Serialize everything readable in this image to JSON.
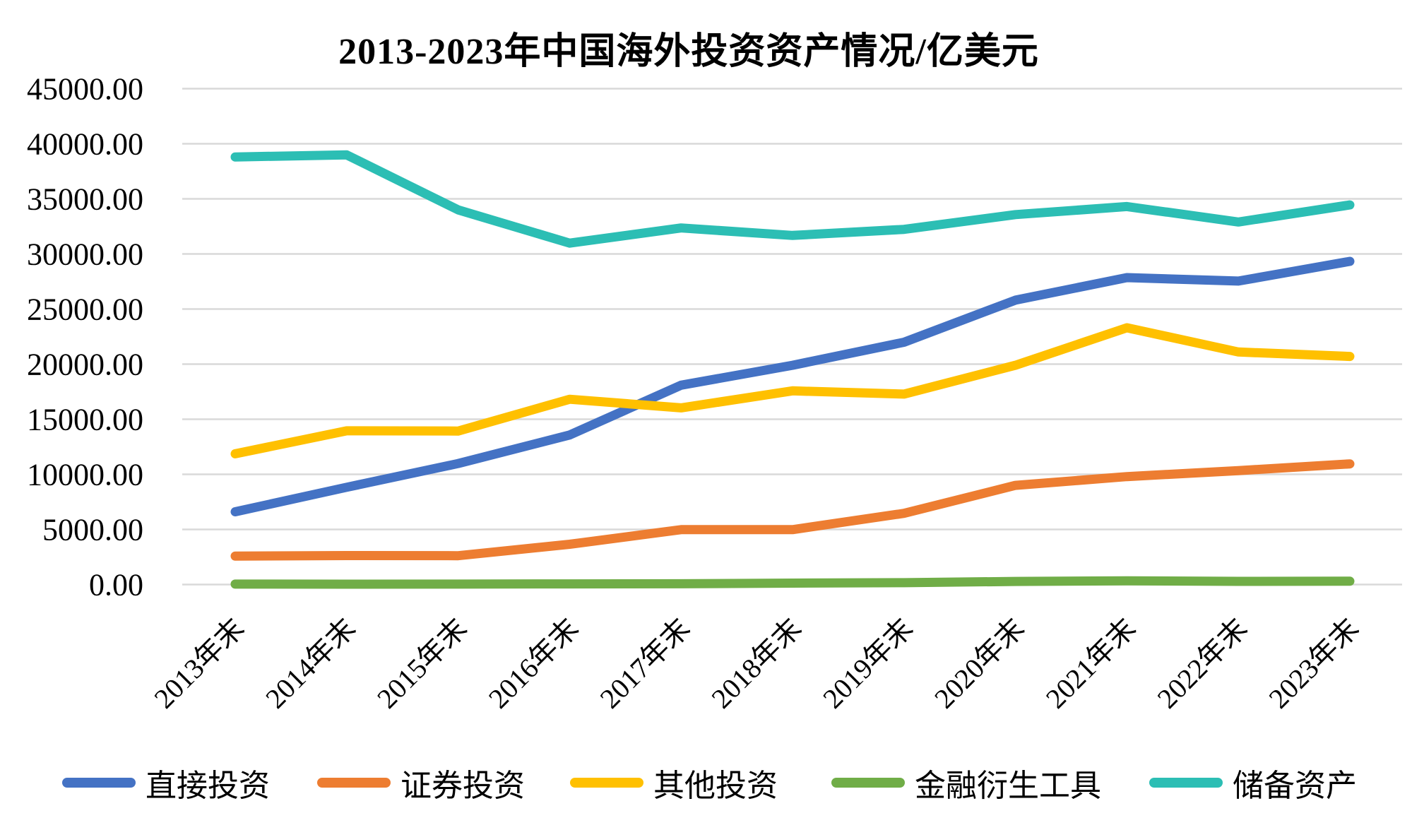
{
  "chart_data": {
    "type": "line",
    "title": "2013-2023年中国海外投资资产情况/亿美元",
    "unit": "亿美元",
    "categories": [
      "2013年末",
      "2014年末",
      "2015年末",
      "2016年末",
      "2017年末",
      "2018年末",
      "2019年末",
      "2020年末",
      "2021年末",
      "2022年末",
      "2023年末"
    ],
    "series": [
      {
        "name": "直接投资",
        "color": "#4472C4",
        "values": [
          6605,
          8826,
          10978,
          13572,
          18090,
          19899,
          21989,
          25807,
          27852,
          27537,
          29325
        ]
      },
      {
        "name": "证券投资",
        "color": "#ED7D31",
        "values": [
          2585,
          2625,
          2613,
          3651,
          4981,
          4979,
          6460,
          9001,
          9797,
          10338,
          10950
        ]
      },
      {
        "name": "其他投资",
        "color": "#FFC000",
        "values": [
          11867,
          13947,
          13928,
          16817,
          16031,
          17577,
          17285,
          19900,
          23300,
          21100,
          20700
        ]
      },
      {
        "name": "金融衍生工具",
        "color": "#70AD47",
        "values": [
          40,
          34,
          41,
          57,
          69,
          126,
          167,
          284,
          338,
          290,
          300
        ]
      },
      {
        "name": "储备资产",
        "color": "#2CBEB4",
        "values": [
          38800,
          38990,
          34000,
          30980,
          32360,
          31680,
          32230,
          33570,
          34300,
          32900,
          34450
        ]
      }
    ],
    "xlabel": "",
    "ylabel": "",
    "ylim": [
      0,
      45000
    ],
    "y_tick_step": 5000,
    "y_tick_labels": [
      "0.00",
      "5000.00",
      "10000.00",
      "15000.00",
      "20000.00",
      "25000.00",
      "30000.00",
      "35000.00",
      "40000.00",
      "45000.00"
    ],
    "grid": "horizontal",
    "gridline_color": "#D9D9D9",
    "legend_position": "bottom"
  }
}
